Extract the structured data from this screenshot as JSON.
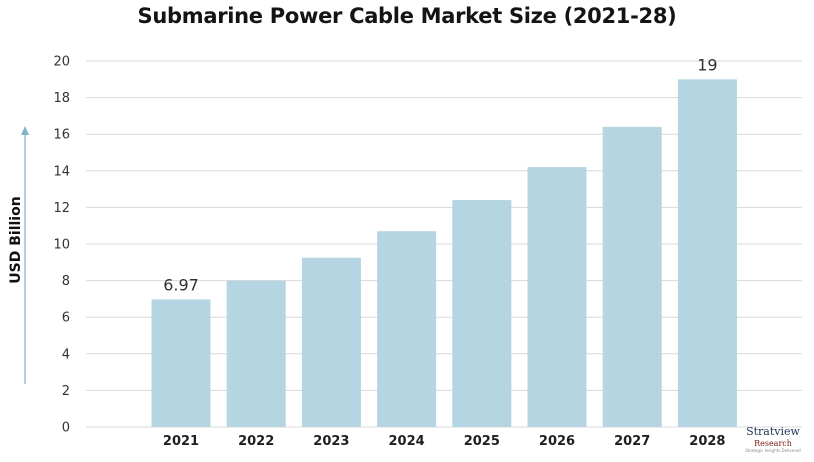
{
  "chart_data": {
    "type": "bar",
    "title": "Submarine Power Cable Market Size (2021-28)",
    "xlabel": "",
    "ylabel": "USD Billion",
    "categories": [
      "2021",
      "2022",
      "2023",
      "2024",
      "2025",
      "2026",
      "2027",
      "2028"
    ],
    "values": [
      6.97,
      8.0,
      9.25,
      10.7,
      12.4,
      14.2,
      16.4,
      19.0
    ],
    "data_labels": [
      {
        "category": "2021",
        "text": "6.97"
      },
      {
        "category": "2028",
        "text": "19"
      }
    ],
    "ylim": [
      0,
      20
    ],
    "yticks": [
      0,
      2,
      4,
      6,
      8,
      10,
      12,
      14,
      16,
      18,
      20
    ],
    "grid": true,
    "colors": {
      "bar": "#b4d5e1",
      "grid": "#d9d9d9",
      "axis_arrow": "#7fb3c8"
    }
  },
  "logo": {
    "brand": "Stratview",
    "sub": "Research",
    "tagline": "Strategic Insights Delivered"
  }
}
